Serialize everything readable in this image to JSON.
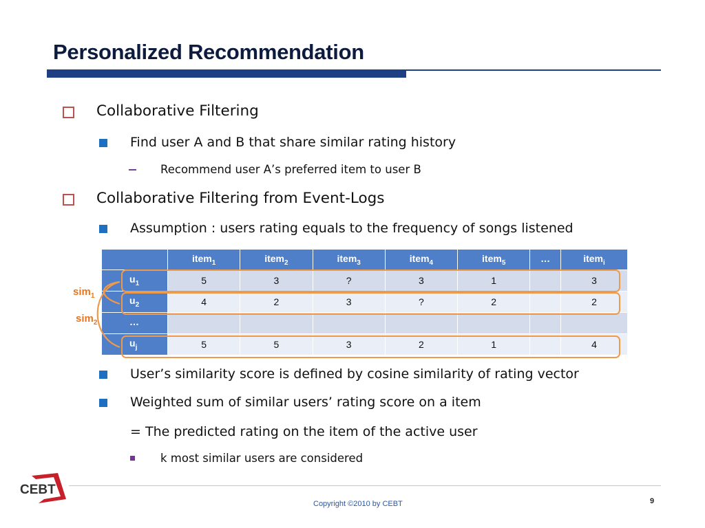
{
  "slide": {
    "title": "Personalized Recommendation",
    "bullets": {
      "cf": "Collaborative Filtering",
      "cf_sub": "Find user A and B that share similar rating history",
      "cf_subsub": "Recommend user A’s preferred item to user B",
      "cfe": "Collaborative Filtering from Event-Logs",
      "assumption": "Assumption : users rating equals to the frequency of songs listened",
      "similarity": "User’s similarity score is defined by cosine similarity of rating vector",
      "weighted": "Weighted sum of similar users’ rating score on a item",
      "predicted": "= The predicted rating on the item of the active user",
      "k_similar": "k most similar users are considered"
    }
  },
  "table": {
    "header": [
      {
        "base": "item",
        "sub": "1"
      },
      {
        "base": "item",
        "sub": "2"
      },
      {
        "base": "item",
        "sub": "3"
      },
      {
        "base": "item",
        "sub": "4"
      },
      {
        "base": "item",
        "sub": "5"
      },
      {
        "base": "…",
        "sub": ""
      },
      {
        "base": "item",
        "sub": "i"
      }
    ],
    "rows": [
      {
        "base": "u",
        "sub": "1",
        "values": [
          "5",
          "3",
          "?",
          "3",
          "1",
          "",
          "3"
        ]
      },
      {
        "base": "u",
        "sub": "2",
        "values": [
          "4",
          "2",
          "3",
          "?",
          "2",
          "",
          "2"
        ]
      },
      {
        "base": "…",
        "sub": "",
        "values": [
          "",
          "",
          "",
          "",
          "",
          "",
          ""
        ]
      },
      {
        "base": "u",
        "sub": "j",
        "values": [
          "5",
          "5",
          "3",
          "2",
          "1",
          "",
          "4"
        ]
      }
    ]
  },
  "sim_labels": [
    {
      "base": "sim",
      "sub": "1"
    },
    {
      "base": "sim",
      "sub": "2"
    }
  ],
  "footer": {
    "copyright": "Copyright ©2010 by CEBT",
    "page": "9",
    "logo_text": "CEBT"
  },
  "colors": {
    "title_bar": "#1f3f85",
    "table_header": "#4e7fc8",
    "highlight": "#ee9a4d",
    "sim_label": "#e8761e",
    "level1_bullet": "#c0504d",
    "level2_bullet": "#1f6fc1",
    "logo_red": "#c8202a"
  },
  "icons": {
    "level1_bullet": "hollow-square-icon",
    "level2_bullet": "filled-square-icon",
    "level3_bullet": "dash-icon",
    "level4_bullet": "small-square-icon"
  }
}
